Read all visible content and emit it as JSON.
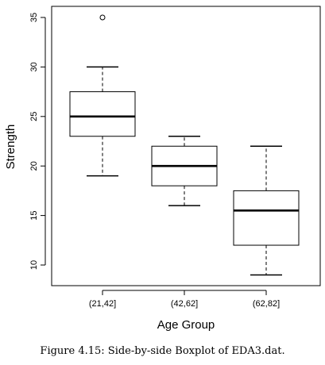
{
  "chart_data": {
    "type": "boxplot",
    "xlabel": "Age Group",
    "ylabel": "Strength",
    "categories": [
      "(21,42]",
      "(42,62]",
      "(62,82]"
    ],
    "boxes": [
      {
        "category": "(21,42]",
        "whisker_low": 19,
        "q1": 23,
        "median": 25,
        "q3": 27.5,
        "whisker_high": 30,
        "outliers": [
          35
        ]
      },
      {
        "category": "(42,62]",
        "whisker_low": 16,
        "q1": 18,
        "median": 20,
        "q3": 22,
        "whisker_high": 23,
        "outliers": []
      },
      {
        "category": "(62,82]",
        "whisker_low": 9,
        "q1": 12,
        "median": 15.5,
        "q3": 17.5,
        "whisker_high": 22,
        "outliers": []
      }
    ],
    "yticks": [
      10,
      15,
      20,
      25,
      30,
      35
    ],
    "ylim": [
      8,
      36
    ]
  },
  "caption": "Figure 4.15: Side-by-side Boxplot of EDA3.dat."
}
